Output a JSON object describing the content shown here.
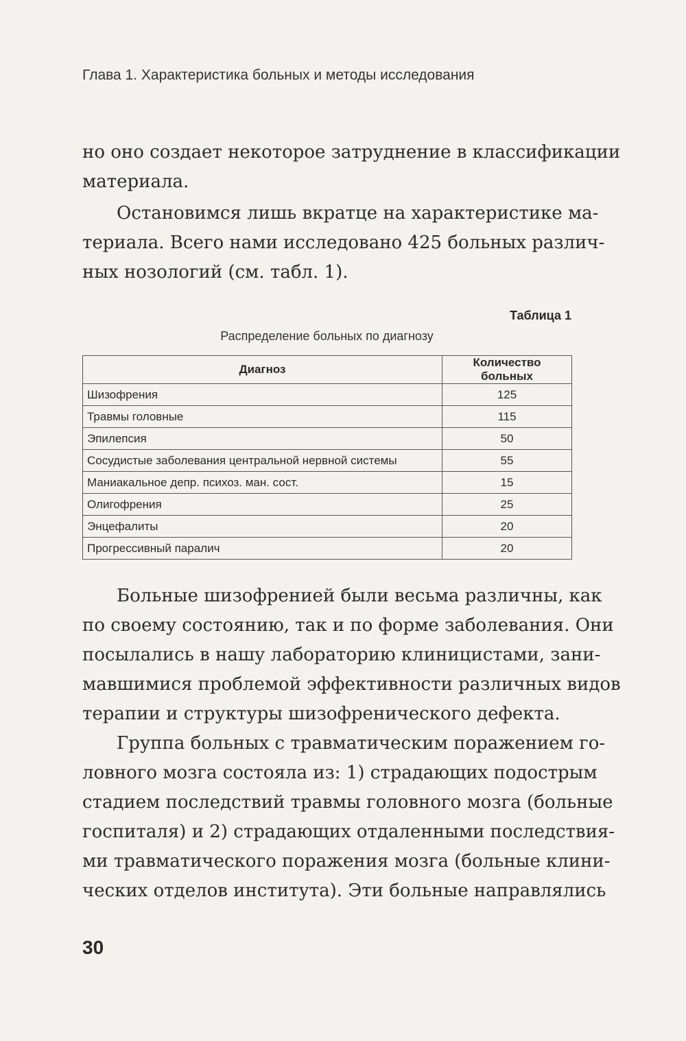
{
  "header": "Глава 1. Характеристика больных и методы исследования",
  "para1": [
    "но оно создает некоторое затруднение в классификации",
    "материала."
  ],
  "para2": [
    "Остановимся лишь вкратце на характеристике ма-",
    "териала. Всего нами исследовано 425 больных различ-",
    "ных нозологий (см. табл. 1)."
  ],
  "table": {
    "label": "Таблица 1",
    "caption": "Распределение больных по диагнозу",
    "headers": [
      "Диагноз",
      "Количество больных"
    ],
    "rows": [
      [
        "Шизофрения",
        "125"
      ],
      [
        "Травмы головные",
        "115"
      ],
      [
        "Эпилепсия",
        "50"
      ],
      [
        "Сосудистые заболевания центральной нервной системы",
        "55"
      ],
      [
        "Маниакальное депр. психоз. ман. сост.",
        "15"
      ],
      [
        "Олигофрения",
        "25"
      ],
      [
        "Энцефалиты",
        "20"
      ],
      [
        "Прогрессивный паралич",
        "20"
      ]
    ]
  },
  "para3": [
    "Больные шизофренией были весьма различны, как",
    "по своему состоянию, так и по форме заболевания. Они",
    "посылались в нашу лабораторию клиницистами, зани-",
    "мавшимися проблемой эффективности различных видов",
    "терапии и структуры шизофренического дефекта."
  ],
  "para4": [
    "Группа больных с травматическим поражением го-",
    "ловного мозга состояла из: 1) страдающих подострым",
    "стадием последствий травмы головного мозга (больные",
    "госпиталя) и 2) страдающих отдаленными последствия-",
    "ми травматического поражения мозга (больные клини-",
    "ческих отделов института). Эти больные направлялись"
  ],
  "page_number": "30"
}
